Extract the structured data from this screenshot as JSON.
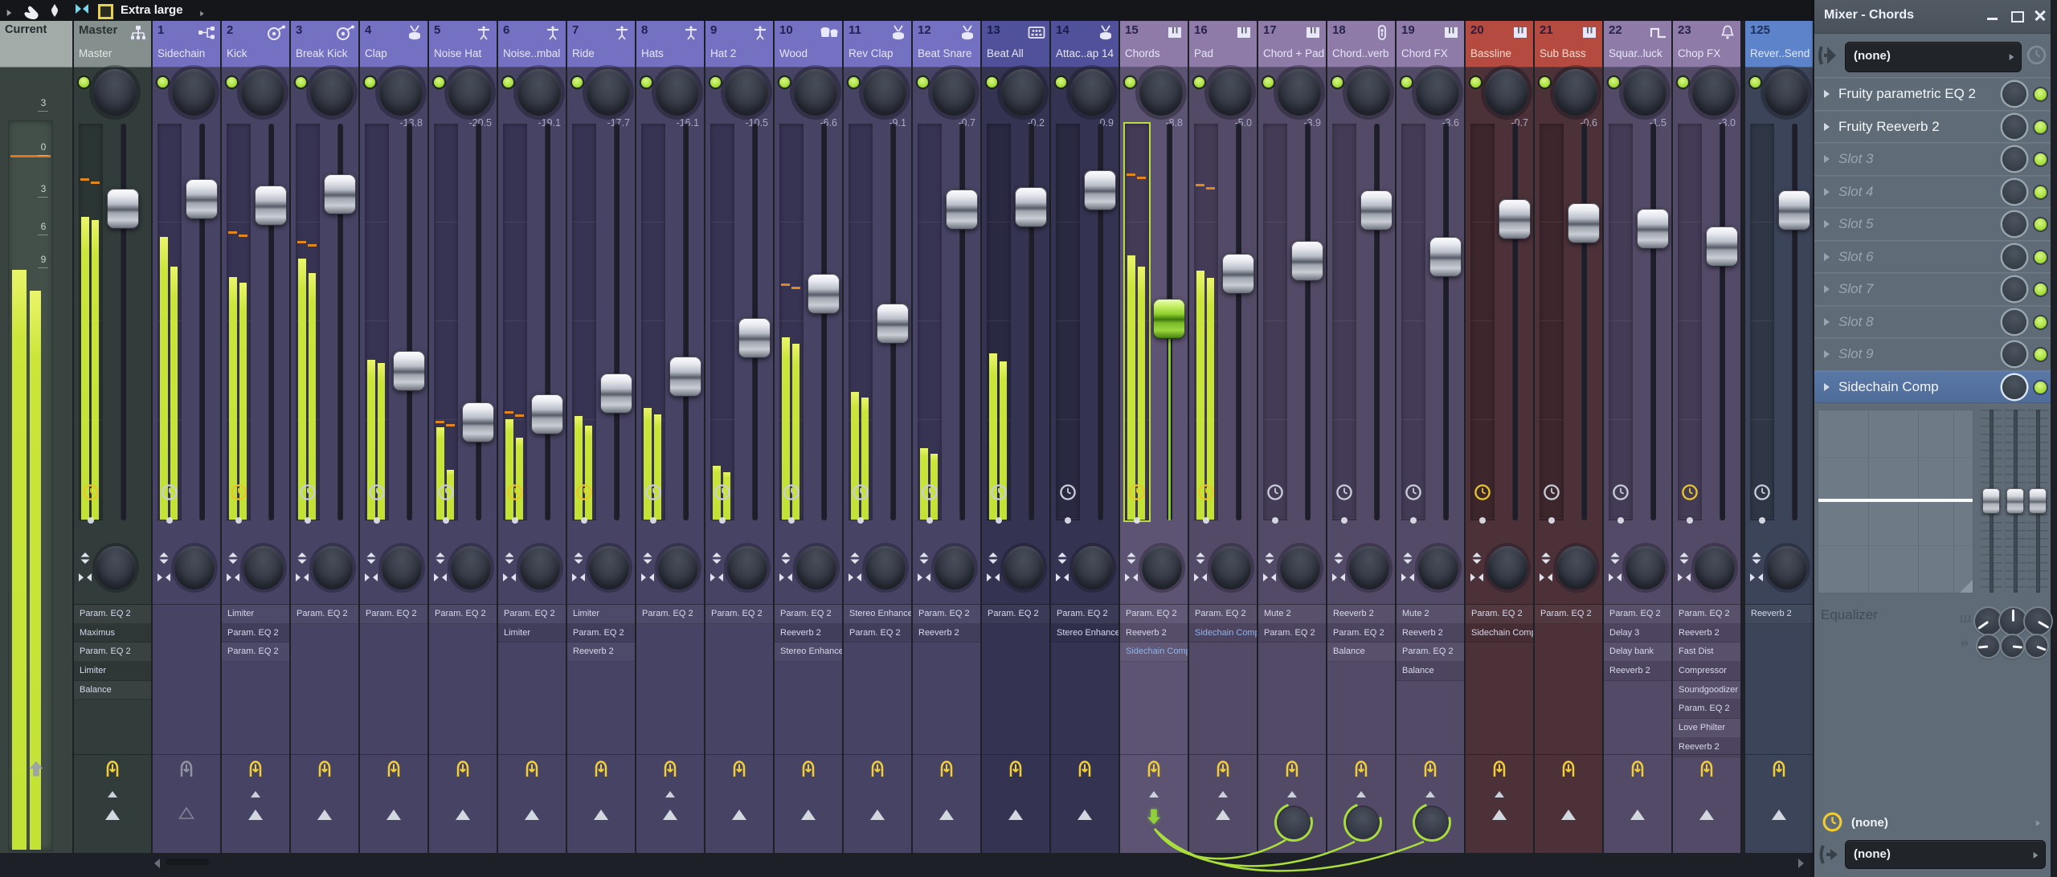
{
  "toolbar": {
    "view_label": "Extra large"
  },
  "window": {
    "title": "Mixer - Chords"
  },
  "panel": {
    "input_value": "(none)",
    "time_value": "(none)",
    "output_value": "(none)",
    "equalizer_label": "Equalizer",
    "slots": [
      {
        "label": "Fruity parametric EQ 2",
        "state": "used"
      },
      {
        "label": "Fruity Reeverb 2",
        "state": "used"
      },
      {
        "label": "Slot 3",
        "state": "empty"
      },
      {
        "label": "Slot 4",
        "state": "empty"
      },
      {
        "label": "Slot 5",
        "state": "empty"
      },
      {
        "label": "Slot 6",
        "state": "empty"
      },
      {
        "label": "Slot 7",
        "state": "empty"
      },
      {
        "label": "Slot 8",
        "state": "empty"
      },
      {
        "label": "Slot 9",
        "state": "empty"
      },
      {
        "label": "Sidechain Comp",
        "state": "used",
        "selected": true
      }
    ]
  },
  "meter_scale": [
    "3",
    "0",
    "3",
    "6",
    "9"
  ],
  "colors": {
    "accent_green": "#a8e03c",
    "cable_green": "#aade3c",
    "peak_orange": "#e2871f",
    "groups": {
      "current": {
        "header": "#a2aba8",
        "body": "#39433f",
        "well": "#434f49"
      },
      "master": {
        "header": "#858f8d",
        "body": "#323c3a",
        "well": "#2b3533"
      },
      "purple": {
        "header": "#7571c2",
        "body": "#464364",
        "well": "#373453"
      },
      "navy": {
        "header": "#50519a",
        "body": "#343351",
        "well": "#2a2942"
      },
      "mauve": {
        "header": "#8e7ba8",
        "body": "#534a67",
        "well": "#443c57"
      },
      "red": {
        "header": "#b44a40",
        "body": "#4c3139",
        "well": "#3d272d"
      },
      "blue": {
        "header": "#5d84ca",
        "body": "#3c4459",
        "well": "#2f3747"
      }
    }
  },
  "tracks": [
    {
      "kind": "current",
      "number": "",
      "name": "Current",
      "icon": "none",
      "group": "current",
      "db": "",
      "bars": [
        334,
        360
      ],
      "peak": 192
    },
    {
      "kind": "master",
      "number": "Master",
      "name": "Master",
      "icon": "master",
      "group": "master",
      "db": "",
      "fader": 260,
      "bars": [
        270,
        274
      ],
      "peak": 222,
      "clock": "yellow",
      "arm": "yellow",
      "small_arrow": true,
      "bottom": "tri",
      "plugins": [
        {
          "label": "Param. EQ 2"
        },
        {
          "label": "Maximus"
        },
        {
          "label": "Param. EQ 2"
        },
        {
          "label": "Limiter"
        },
        {
          "label": "Balance"
        }
      ]
    },
    {
      "kind": "track",
      "number": "1",
      "name": "Sidechain",
      "icon": "sidechain",
      "group": "purple",
      "db": "",
      "fader": 248,
      "bars": [
        295,
        332
      ],
      "clock": "white",
      "arm": "grey",
      "small_arrow": false,
      "bottom": "tri-outline",
      "plugins": []
    },
    {
      "kind": "track",
      "number": "2",
      "name": "Kick",
      "icon": "kick",
      "group": "purple",
      "db": "",
      "fader": 256,
      "bars": [
        345,
        352
      ],
      "peak": 288,
      "clock": "yellow",
      "arm": "yellow",
      "small_arrow": true,
      "bottom": "tri",
      "plugins": [
        {
          "label": "Limiter"
        },
        {
          "label": "Param. EQ 2"
        },
        {
          "label": "Param. EQ 2"
        }
      ]
    },
    {
      "kind": "track",
      "number": "3",
      "name": "Break Kick",
      "icon": "kick",
      "group": "purple",
      "db": "",
      "fader": 242,
      "bars": [
        322,
        340
      ],
      "peak": 300,
      "clock": "white",
      "arm": "yellow",
      "small_arrow": false,
      "bottom": "tri",
      "plugins": [
        {
          "label": "Param. EQ 2"
        }
      ]
    },
    {
      "kind": "track",
      "number": "4",
      "name": "Clap",
      "icon": "snare",
      "group": "purple",
      "db": "-13.8",
      "fader": 462,
      "bars": [
        448,
        452
      ],
      "clock": "white",
      "arm": "yellow",
      "small_arrow": false,
      "bottom": "tri",
      "plugins": [
        {
          "label": "Param. EQ 2"
        }
      ]
    },
    {
      "kind": "track",
      "number": "5",
      "name": "Noise Hat",
      "icon": "hihat",
      "group": "purple",
      "db": "-20.5",
      "fader": 526,
      "bars": [
        532,
        585
      ],
      "peak": 524,
      "clock": "white",
      "arm": "yellow",
      "small_arrow": false,
      "bottom": "tri",
      "plugins": [
        {
          "label": "Param. EQ 2"
        }
      ]
    },
    {
      "kind": "track",
      "number": "6",
      "name": "Noise..mbal",
      "icon": "hihat",
      "group": "purple",
      "db": "-19.1",
      "fader": 516,
      "bars": [
        522,
        545
      ],
      "peak": 512,
      "clock": "yellow",
      "arm": "yellow",
      "small_arrow": false,
      "bottom": "tri",
      "plugins": [
        {
          "label": "Param. EQ 2"
        },
        {
          "label": "Limiter"
        }
      ]
    },
    {
      "kind": "track",
      "number": "7",
      "name": "Ride",
      "icon": "hihat",
      "group": "purple",
      "db": "-17.7",
      "fader": 490,
      "bars": [
        518,
        530
      ],
      "clock": "yellow",
      "arm": "yellow",
      "small_arrow": false,
      "bottom": "tri",
      "plugins": [
        {
          "label": "Limiter"
        },
        {
          "label": "Param. EQ 2"
        },
        {
          "label": "Reeverb 2"
        }
      ]
    },
    {
      "kind": "track",
      "number": "8",
      "name": "Hats",
      "icon": "hihat",
      "group": "purple",
      "db": "-16.1",
      "fader": 469,
      "bars": [
        508,
        516
      ],
      "clock": "white",
      "arm": "yellow",
      "small_arrow": true,
      "bottom": "tri",
      "plugins": [
        {
          "label": "Param. EQ 2"
        }
      ]
    },
    {
      "kind": "track",
      "number": "9",
      "name": "Hat 2",
      "icon": "hihat",
      "group": "purple",
      "db": "-10.5",
      "fader": 421,
      "bars": [
        580,
        588
      ],
      "clock": "white",
      "arm": "yellow",
      "small_arrow": false,
      "bottom": "tri",
      "plugins": [
        {
          "label": "Param. EQ 2"
        }
      ]
    },
    {
      "kind": "track",
      "number": "10",
      "name": "Wood",
      "icon": "bongos",
      "group": "purple",
      "db": "-6.6",
      "fader": 366,
      "bars": [
        420,
        428
      ],
      "peak": 353,
      "clock": "white",
      "arm": "yellow",
      "small_arrow": false,
      "bottom": "tri",
      "plugins": [
        {
          "label": "Param. EQ 2"
        },
        {
          "label": "Reeverb 2"
        },
        {
          "label": "Stereo Enhancer"
        }
      ]
    },
    {
      "kind": "track",
      "number": "11",
      "name": "Rev Clap",
      "icon": "snare",
      "group": "purple",
      "db": "-9.1",
      "fader": 403,
      "bars": [
        488,
        495
      ],
      "clock": "white",
      "arm": "yellow",
      "small_arrow": false,
      "bottom": "tri",
      "plugins": [
        {
          "label": "Stereo Enhancer"
        },
        {
          "label": "Param. EQ 2"
        }
      ]
    },
    {
      "kind": "track",
      "number": "12",
      "name": "Beat Snare",
      "icon": "snare",
      "group": "purple",
      "db": "-0.7",
      "fader": 261,
      "bars": [
        558,
        565
      ],
      "clock": "white",
      "arm": "yellow",
      "small_arrow": false,
      "bottom": "tri",
      "plugins": [
        {
          "label": "Param. EQ 2"
        },
        {
          "label": "Reeverb 2"
        }
      ]
    },
    {
      "kind": "track",
      "number": "13",
      "name": "Beat All",
      "icon": "drummachine",
      "group": "navy",
      "db": "-0.2",
      "fader": 258,
      "bars": [
        440,
        450
      ],
      "clock": "white",
      "arm": "yellow",
      "small_arrow": false,
      "bottom": "tri",
      "plugins": [
        {
          "label": "Param. EQ 2"
        }
      ]
    },
    {
      "kind": "track",
      "number": "14",
      "name": "Attac..ap 14",
      "icon": "snare",
      "group": "navy",
      "db": "0.9",
      "fader": 237,
      "bars": null,
      "clock": "white",
      "arm": "yellow",
      "small_arrow": false,
      "bottom": "tri",
      "plugins": [
        {
          "label": "Param. EQ 2"
        },
        {
          "label": "Stereo Enhancer"
        }
      ]
    },
    {
      "kind": "track",
      "number": "15",
      "name": "Chords",
      "icon": "piano",
      "group": "mauve",
      "selected": true,
      "db": "-8.8",
      "fader": 397,
      "fader_color": "green",
      "bars": [
        318,
        332
      ],
      "peak": 216,
      "clock": "yellow",
      "arm": "yellow",
      "small_arrow": true,
      "bottom": "green-down",
      "plugins": [
        {
          "label": "Param. EQ 2"
        },
        {
          "label": "Reeverb 2"
        },
        {
          "label": "Sidechain Comp",
          "hl": true
        }
      ]
    },
    {
      "kind": "track",
      "number": "16",
      "name": "Pad",
      "icon": "piano",
      "group": "mauve",
      "db": "-5.0",
      "fader": 341,
      "bars": [
        337,
        346
      ],
      "peak": 229,
      "clock": "yellow",
      "arm": "yellow",
      "small_arrow": true,
      "bottom": "tri",
      "plugins": [
        {
          "label": "Param. EQ 2"
        },
        {
          "label": "Sidechain Comp",
          "hl": true
        }
      ]
    },
    {
      "kind": "track",
      "number": "17",
      "name": "Chord + Pad",
      "icon": "piano",
      "group": "mauve",
      "db": "-3.9",
      "fader": 325,
      "bars": null,
      "clock": "white",
      "arm": "yellow",
      "small_arrow": true,
      "bottom": "green-knob",
      "plugins": [
        {
          "label": "Mute 2"
        },
        {
          "label": "Param. EQ 2"
        }
      ]
    },
    {
      "kind": "track",
      "number": "18",
      "name": "Chord..verb",
      "icon": "capsule",
      "group": "mauve",
      "db": "",
      "fader": 262,
      "bars": null,
      "clock": "white",
      "arm": "yellow",
      "small_arrow": true,
      "bottom": "green-knob",
      "plugins": [
        {
          "label": "Reeverb 2"
        },
        {
          "label": "Param. EQ 2"
        },
        {
          "label": "Balance"
        }
      ]
    },
    {
      "kind": "track",
      "number": "19",
      "name": "Chord FX",
      "icon": "piano",
      "group": "mauve",
      "db": "-3.6",
      "fader": 320,
      "bars": null,
      "clock": "white",
      "arm": "yellow",
      "small_arrow": true,
      "bottom": "green-knob",
      "plugins": [
        {
          "label": "Mute 2"
        },
        {
          "label": "Reeverb 2"
        },
        {
          "label": "Param. EQ 2"
        },
        {
          "label": "Balance"
        }
      ]
    },
    {
      "kind": "track",
      "number": "20",
      "name": "Bassline",
      "icon": "piano",
      "group": "red",
      "db": "-0.7",
      "fader": 273,
      "bars": null,
      "clock": "yellow",
      "arm": "yellow",
      "small_arrow": true,
      "bottom": "tri",
      "plugins": [
        {
          "label": "Param. EQ 2"
        },
        {
          "label": "Sidechain Comp"
        }
      ]
    },
    {
      "kind": "track",
      "number": "21",
      "name": "Sub Bass",
      "icon": "piano",
      "group": "red",
      "db": "-0.6",
      "fader": 278,
      "bars": null,
      "clock": "white",
      "arm": "yellow",
      "small_arrow": false,
      "bottom": "tri",
      "plugins": [
        {
          "label": "Param. EQ 2"
        }
      ]
    },
    {
      "kind": "track",
      "number": "22",
      "name": "Squar..luck",
      "icon": "squarewave",
      "group": "mauve",
      "db": "-1.5",
      "fader": 285,
      "bars": null,
      "clock": "white",
      "arm": "yellow",
      "small_arrow": false,
      "bottom": "tri",
      "plugins": [
        {
          "label": "Param. EQ 2"
        },
        {
          "label": "Delay 3"
        },
        {
          "label": "Delay bank"
        },
        {
          "label": "Reeverb 2"
        }
      ]
    },
    {
      "kind": "track",
      "number": "23",
      "name": "Chop FX",
      "icon": "bell",
      "group": "mauve",
      "db": "-3.0",
      "fader": 307,
      "bars": null,
      "clock": "yellow",
      "arm": "yellow",
      "small_arrow": false,
      "bottom": "tri",
      "plugins": [
        {
          "label": "Param. EQ 2"
        },
        {
          "label": "Reeverb 2"
        },
        {
          "label": "Fast Dist"
        },
        {
          "label": "Compressor"
        },
        {
          "label": "Soundgoodizer"
        },
        {
          "label": "Param. EQ 2"
        },
        {
          "label": "Love Philter"
        },
        {
          "label": "Reeverb 2"
        }
      ]
    },
    {
      "kind": "track",
      "number": "125",
      "name": "Rever..Send",
      "icon": "none",
      "group": "blue",
      "db": "",
      "fader": 262,
      "bars": null,
      "clock": "white",
      "arm": "yellow",
      "small_arrow": false,
      "bottom": "tri",
      "plugins": [
        {
          "label": "Reeverb 2"
        }
      ]
    }
  ]
}
